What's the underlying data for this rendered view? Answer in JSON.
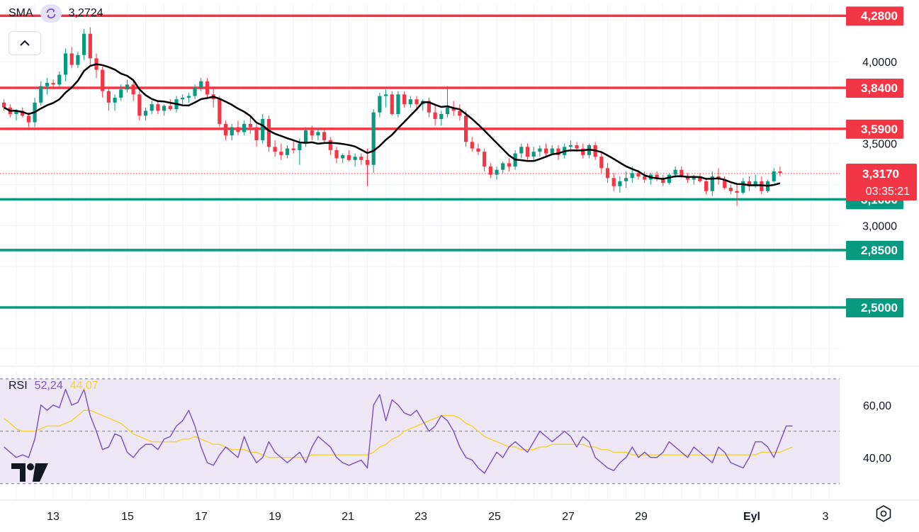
{
  "indicators": {
    "sma": {
      "label": "SMA",
      "value": "3,2724",
      "icon": "refresh-icon"
    },
    "rsi": {
      "label": "RSI",
      "value": "52,24",
      "ma_value": "44,07"
    }
  },
  "colors": {
    "up": "#089981",
    "down": "#f23645",
    "sma": "#000000",
    "rsi": "#7e57c2",
    "rsi_ma": "#f5d43b",
    "rsi_band": "#ede7f6",
    "resistance": "#f23645",
    "support": "#089981"
  },
  "chart_data": [
    {
      "type": "candlestick",
      "title": "",
      "x_tick_labels": [
        "13",
        "15",
        "17",
        "19",
        "21",
        "23",
        "25",
        "27",
        "29",
        "Eyl",
        "3"
      ],
      "y_tick_labels": [
        "4,0000",
        "3,5000",
        "3,0000"
      ],
      "ylim": [
        2.15,
        4.35
      ],
      "current_price": {
        "value": "3,3170",
        "countdown": "03:35:21"
      },
      "horizontal_levels": [
        {
          "value": 4.28,
          "label": "4,2800",
          "kind": "resistance"
        },
        {
          "value": 3.84,
          "label": "3,8400",
          "kind": "resistance"
        },
        {
          "value": 3.59,
          "label": "3,5900",
          "kind": "resistance"
        },
        {
          "value": 3.16,
          "label": "3,1600",
          "kind": "support"
        },
        {
          "value": 2.85,
          "label": "2,8500",
          "kind": "support"
        },
        {
          "value": 2.5,
          "label": "2,5000",
          "kind": "support"
        }
      ],
      "candles_ohlc": [
        [
          3.75,
          3.77,
          3.7,
          3.72
        ],
        [
          3.72,
          3.74,
          3.66,
          3.68
        ],
        [
          3.68,
          3.71,
          3.64,
          3.7
        ],
        [
          3.7,
          3.72,
          3.66,
          3.67
        ],
        [
          3.67,
          3.69,
          3.6,
          3.63
        ],
        [
          3.63,
          3.78,
          3.6,
          3.75
        ],
        [
          3.75,
          3.88,
          3.73,
          3.85
        ],
        [
          3.85,
          3.9,
          3.8,
          3.87
        ],
        [
          3.87,
          3.89,
          3.83,
          3.86
        ],
        [
          3.86,
          3.94,
          3.84,
          3.92
        ],
        [
          3.92,
          4.08,
          3.88,
          4.05
        ],
        [
          4.05,
          4.09,
          3.96,
          3.98
        ],
        [
          3.98,
          4.06,
          3.96,
          4.04
        ],
        [
          4.04,
          4.2,
          4.01,
          4.17
        ],
        [
          4.17,
          4.21,
          3.98,
          4.02
        ],
        [
          4.02,
          4.05,
          3.9,
          3.95
        ],
        [
          3.95,
          3.97,
          3.78,
          3.82
        ],
        [
          3.82,
          3.84,
          3.7,
          3.75
        ],
        [
          3.75,
          3.8,
          3.7,
          3.78
        ],
        [
          3.78,
          3.86,
          3.76,
          3.83
        ],
        [
          3.83,
          3.89,
          3.81,
          3.86
        ],
        [
          3.86,
          3.88,
          3.76,
          3.8
        ],
        [
          3.8,
          3.82,
          3.64,
          3.67
        ],
        [
          3.67,
          3.72,
          3.64,
          3.7
        ],
        [
          3.7,
          3.76,
          3.68,
          3.74
        ],
        [
          3.74,
          3.76,
          3.68,
          3.7
        ],
        [
          3.7,
          3.74,
          3.67,
          3.73
        ],
        [
          3.73,
          3.77,
          3.7,
          3.71
        ],
        [
          3.71,
          3.79,
          3.69,
          3.77
        ],
        [
          3.77,
          3.8,
          3.74,
          3.78
        ],
        [
          3.78,
          3.81,
          3.75,
          3.79
        ],
        [
          3.79,
          3.86,
          3.77,
          3.84
        ],
        [
          3.84,
          3.9,
          3.82,
          3.88
        ],
        [
          3.88,
          3.9,
          3.78,
          3.8
        ],
        [
          3.8,
          3.84,
          3.72,
          3.77
        ],
        [
          3.77,
          3.79,
          3.6,
          3.62
        ],
        [
          3.62,
          3.64,
          3.52,
          3.55
        ],
        [
          3.55,
          3.62,
          3.52,
          3.6
        ],
        [
          3.6,
          3.64,
          3.55,
          3.57
        ],
        [
          3.57,
          3.64,
          3.55,
          3.62
        ],
        [
          3.62,
          3.66,
          3.56,
          3.6
        ],
        [
          3.6,
          3.62,
          3.48,
          3.52
        ],
        [
          3.52,
          3.68,
          3.5,
          3.65
        ],
        [
          3.65,
          3.67,
          3.45,
          3.48
        ],
        [
          3.48,
          3.52,
          3.42,
          3.45
        ],
        [
          3.45,
          3.5,
          3.4,
          3.43
        ],
        [
          3.43,
          3.49,
          3.41,
          3.47
        ],
        [
          3.47,
          3.52,
          3.44,
          3.46
        ],
        [
          3.46,
          3.53,
          3.37,
          3.5
        ],
        [
          3.5,
          3.6,
          3.48,
          3.58
        ],
        [
          3.58,
          3.61,
          3.52,
          3.55
        ],
        [
          3.55,
          3.59,
          3.52,
          3.57
        ],
        [
          3.57,
          3.59,
          3.5,
          3.52
        ],
        [
          3.52,
          3.54,
          3.43,
          3.46
        ],
        [
          3.46,
          3.48,
          3.38,
          3.41
        ],
        [
          3.41,
          3.44,
          3.38,
          3.43
        ],
        [
          3.43,
          3.46,
          3.39,
          3.4
        ],
        [
          3.4,
          3.44,
          3.36,
          3.42
        ],
        [
          3.42,
          3.44,
          3.37,
          3.4
        ],
        [
          3.4,
          3.47,
          3.24,
          3.37
        ],
        [
          3.37,
          3.71,
          3.32,
          3.69
        ],
        [
          3.69,
          3.81,
          3.66,
          3.79
        ],
        [
          3.79,
          3.83,
          3.72,
          3.8
        ],
        [
          3.8,
          3.82,
          3.67,
          3.68
        ],
        [
          3.68,
          3.82,
          3.66,
          3.8
        ],
        [
          3.8,
          3.82,
          3.72,
          3.74
        ],
        [
          3.74,
          3.79,
          3.72,
          3.77
        ],
        [
          3.77,
          3.79,
          3.71,
          3.74
        ],
        [
          3.74,
          3.77,
          3.7,
          3.76
        ],
        [
          3.76,
          3.78,
          3.66,
          3.69
        ],
        [
          3.69,
          3.73,
          3.61,
          3.65
        ],
        [
          3.65,
          3.7,
          3.61,
          3.68
        ],
        [
          3.68,
          3.85,
          3.66,
          3.72
        ],
        [
          3.72,
          3.76,
          3.67,
          3.7
        ],
        [
          3.7,
          3.74,
          3.64,
          3.67
        ],
        [
          3.67,
          3.7,
          3.48,
          3.51
        ],
        [
          3.51,
          3.54,
          3.45,
          3.47
        ],
        [
          3.47,
          3.5,
          3.43,
          3.45
        ],
        [
          3.45,
          3.47,
          3.33,
          3.36
        ],
        [
          3.36,
          3.38,
          3.29,
          3.31
        ],
        [
          3.31,
          3.36,
          3.28,
          3.34
        ],
        [
          3.34,
          3.39,
          3.32,
          3.38
        ],
        [
          3.38,
          3.41,
          3.33,
          3.36
        ],
        [
          3.36,
          3.46,
          3.34,
          3.44
        ],
        [
          3.44,
          3.5,
          3.41,
          3.48
        ],
        [
          3.48,
          3.5,
          3.4,
          3.42
        ],
        [
          3.42,
          3.48,
          3.4,
          3.45
        ],
        [
          3.45,
          3.49,
          3.42,
          3.47
        ],
        [
          3.47,
          3.5,
          3.42,
          3.44
        ],
        [
          3.44,
          3.49,
          3.43,
          3.47
        ],
        [
          3.47,
          3.49,
          3.4,
          3.43
        ],
        [
          3.43,
          3.5,
          3.41,
          3.48
        ],
        [
          3.48,
          3.52,
          3.45,
          3.49
        ],
        [
          3.49,
          3.51,
          3.45,
          3.47
        ],
        [
          3.47,
          3.5,
          3.41,
          3.43
        ],
        [
          3.43,
          3.5,
          3.41,
          3.49
        ],
        [
          3.49,
          3.51,
          3.4,
          3.42
        ],
        [
          3.42,
          3.45,
          3.32,
          3.35
        ],
        [
          3.35,
          3.38,
          3.26,
          3.29
        ],
        [
          3.29,
          3.32,
          3.21,
          3.24
        ],
        [
          3.24,
          3.3,
          3.2,
          3.27
        ],
        [
          3.27,
          3.33,
          3.23,
          3.29
        ],
        [
          3.29,
          3.36,
          3.26,
          3.32
        ],
        [
          3.32,
          3.34,
          3.28,
          3.3
        ],
        [
          3.3,
          3.33,
          3.26,
          3.28
        ],
        [
          3.28,
          3.32,
          3.25,
          3.31
        ],
        [
          3.31,
          3.33,
          3.27,
          3.29
        ],
        [
          3.29,
          3.31,
          3.24,
          3.26
        ],
        [
          3.26,
          3.32,
          3.25,
          3.31
        ],
        [
          3.31,
          3.36,
          3.29,
          3.34
        ],
        [
          3.34,
          3.36,
          3.29,
          3.3
        ],
        [
          3.3,
          3.32,
          3.26,
          3.28
        ],
        [
          3.28,
          3.31,
          3.25,
          3.3
        ],
        [
          3.3,
          3.32,
          3.26,
          3.27
        ],
        [
          3.27,
          3.29,
          3.19,
          3.21
        ],
        [
          3.21,
          3.33,
          3.18,
          3.3
        ],
        [
          3.3,
          3.35,
          3.25,
          3.28
        ],
        [
          3.28,
          3.3,
          3.22,
          3.23
        ],
        [
          3.23,
          3.25,
          3.19,
          3.21
        ],
        [
          3.21,
          3.25,
          3.12,
          3.2
        ],
        [
          3.2,
          3.29,
          3.19,
          3.27
        ],
        [
          3.27,
          3.3,
          3.21,
          3.24
        ],
        [
          3.24,
          3.31,
          3.23,
          3.27
        ],
        [
          3.27,
          3.3,
          3.19,
          3.21
        ],
        [
          3.21,
          3.28,
          3.2,
          3.27
        ],
        [
          3.27,
          3.35,
          3.26,
          3.33
        ],
        [
          3.33,
          3.36,
          3.3,
          3.32
        ]
      ]
    },
    {
      "type": "line",
      "title": "",
      "y_tick_labels": [
        "60,00",
        "40,00"
      ],
      "band": [
        30,
        70
      ],
      "midline": 50,
      "ylim": [
        24,
        74
      ],
      "series": [
        {
          "key": "rsi",
          "values": [
            44,
            42,
            40,
            41,
            40,
            47,
            60,
            58,
            60,
            59,
            66,
            60,
            61,
            66,
            56,
            50,
            43,
            44,
            49,
            48,
            42,
            40,
            43,
            45,
            45,
            43,
            47,
            48,
            52,
            54,
            58,
            52,
            44,
            38,
            37,
            41,
            44,
            42,
            40,
            48,
            42,
            38,
            40,
            46,
            42,
            40,
            38,
            40,
            42,
            38,
            44,
            48,
            46,
            44,
            40,
            38,
            37,
            38,
            39,
            36,
            60,
            64,
            54,
            62,
            60,
            57,
            56,
            58,
            54,
            50,
            52,
            56,
            54,
            50,
            44,
            40,
            39,
            36,
            34,
            38,
            42,
            40,
            44,
            46,
            44,
            42,
            46,
            50,
            48,
            46,
            48,
            50,
            48,
            44,
            48,
            46,
            40,
            38,
            36,
            35,
            38,
            40,
            44,
            40,
            42,
            40,
            40,
            42,
            46,
            44,
            42,
            40,
            44,
            42,
            40,
            38,
            44,
            42,
            38,
            37,
            36,
            40,
            46,
            46,
            44,
            40,
            46,
            52,
            52
          ],
          "ma": [
            55,
            53,
            51,
            50,
            50,
            50,
            51,
            52,
            52,
            52,
            53,
            54,
            56,
            58,
            58,
            57,
            56,
            55,
            54,
            53,
            51,
            49,
            48,
            47,
            46,
            46,
            46,
            46,
            46,
            47,
            47,
            48,
            47,
            46,
            45,
            45,
            44,
            43,
            43,
            43,
            42,
            42,
            41,
            40,
            40,
            40,
            40,
            40,
            40,
            40,
            41,
            41,
            41,
            41,
            41,
            41,
            41,
            41,
            41,
            41,
            42,
            44,
            45,
            47,
            48,
            50,
            51,
            52,
            53,
            54,
            55,
            56,
            56,
            56,
            55,
            53,
            52,
            50,
            48,
            47,
            46,
            45,
            44,
            44,
            43,
            43,
            43,
            44,
            44,
            45,
            45,
            45,
            45,
            45,
            45,
            44,
            44,
            43,
            43,
            42,
            42,
            42,
            41,
            41,
            41,
            41,
            41,
            41,
            41,
            41,
            41,
            41,
            41,
            41,
            41,
            41,
            41,
            41,
            41,
            41,
            41,
            41,
            41,
            42,
            42,
            42,
            42,
            43,
            44
          ]
        }
      ]
    }
  ]
}
